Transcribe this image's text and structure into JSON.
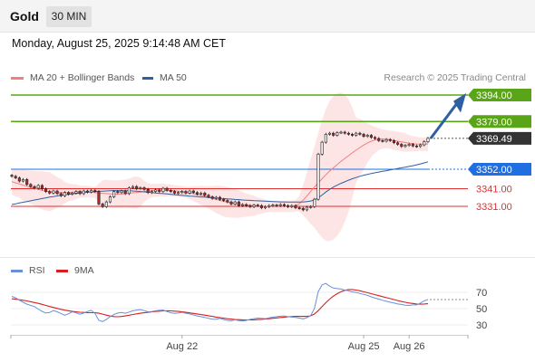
{
  "header": {
    "title": "Gold",
    "timeframe": "30 MIN"
  },
  "datetime": "Monday, August 25, 2025 9:14:48 AM CET",
  "copyright": "Research © 2025 Trading Central",
  "colors": {
    "ma20": "#f08080",
    "ma50": "#2e5fa3",
    "bollinger_fill": "#fde0e0",
    "resistance": "#5aa517",
    "current": "#333333",
    "pivot": "#1f6fe0",
    "support": "#e02f2f",
    "rsi": "#6a8fd8",
    "rsi_ma": "#d81f1f",
    "arrow": "#2e5fa3",
    "candle_up": "#f4f4f4",
    "candle_down": "#b12a2a"
  },
  "legend": {
    "ma20": "MA 20 + Bollinger Bands",
    "ma50": "MA 50",
    "rsi": "RSI",
    "rsi_ma": "9MA"
  },
  "chart_data": [
    {
      "type": "candlestick",
      "instrument": "Gold",
      "timeframe": "30 MIN",
      "ylim": [
        3316,
        3402
      ],
      "x_ticks": [
        "Aug 22",
        "Aug 25",
        "Aug 26"
      ],
      "levels": [
        {
          "label": "3394.00",
          "value": 3394.0,
          "kind": "resistance"
        },
        {
          "label": "3379.00",
          "value": 3379.0,
          "kind": "resistance"
        },
        {
          "label": "3369.49",
          "value": 3369.49,
          "kind": "current"
        },
        {
          "label": "3352.00",
          "value": 3352.0,
          "kind": "pivot"
        },
        {
          "label": "3341.00",
          "value": 3341.0,
          "kind": "support"
        },
        {
          "label": "3331.00",
          "value": 3331.0,
          "kind": "support"
        }
      ],
      "close": [
        3348.0,
        3347.1,
        3345.3,
        3346.2,
        3343.4,
        3342.2,
        3341.3,
        3342.8,
        3340.9,
        3339.4,
        3338.5,
        3339.7,
        3338.2,
        3337.0,
        3338.8,
        3337.9,
        3338.5,
        3339.4,
        3338.2,
        3339.7,
        3339.1,
        3340.0,
        3339.4,
        3332.3,
        3330.8,
        3333.5,
        3336.4,
        3339.4,
        3338.8,
        3339.7,
        3338.2,
        3341.5,
        3342.2,
        3341.0,
        3341.5,
        3340.6,
        3338.8,
        3339.4,
        3340.3,
        3339.4,
        3341.2,
        3340.0,
        3339.4,
        3338.5,
        3338.8,
        3339.4,
        3338.5,
        3339.7,
        3338.8,
        3337.9,
        3338.5,
        3337.3,
        3336.4,
        3335.5,
        3336.1,
        3334.9,
        3334.3,
        3333.5,
        3332.3,
        3333.5,
        3331.4,
        3332.0,
        3331.4,
        3330.8,
        3331.7,
        3331.4,
        3330.2,
        3330.8,
        3331.4,
        3331.7,
        3331.4,
        3332.0,
        3331.4,
        3330.8,
        3331.4,
        3330.2,
        3329.9,
        3329.0,
        3330.5,
        3330.8,
        3335.0,
        3360.5,
        3367.3,
        3371.8,
        3372.4,
        3371.2,
        3372.7,
        3373.0,
        3372.4,
        3371.8,
        3371.2,
        3372.4,
        3371.8,
        3370.6,
        3371.2,
        3370.0,
        3369.4,
        3368.2,
        3367.9,
        3368.8,
        3368.2,
        3367.0,
        3366.1,
        3364.9,
        3365.5,
        3366.1,
        3365.2,
        3364.9,
        3365.8,
        3367.6,
        3369.5
      ],
      "series": [
        {
          "name": "MA 20 + Bollinger Bands",
          "values": [
            3345.0,
            3344.3,
            3343.7,
            3343.0,
            3342.4,
            3341.8,
            3341.2,
            3340.6,
            3340.0,
            3339.6,
            3339.3,
            3339.0,
            3338.9,
            3338.8,
            3338.8,
            3338.9,
            3339.0,
            3339.2,
            3339.3,
            3339.4,
            3339.3,
            3339.1,
            3338.8,
            3338.6,
            3338.4,
            3338.2,
            3338.0,
            3337.9,
            3337.9,
            3338.0,
            3338.2,
            3338.4,
            3338.7,
            3338.9,
            3339.1,
            3339.4,
            3339.7,
            3339.9,
            3340.1,
            3340.2,
            3340.2,
            3340.1,
            3340.0,
            3339.8,
            3339.6,
            3339.3,
            3339.0,
            3338.6,
            3338.2,
            3337.7,
            3337.2,
            3336.7,
            3336.1,
            3335.5,
            3334.9,
            3334.4,
            3333.8,
            3333.4,
            3333.0,
            3332.6,
            3332.3,
            3332.0,
            3331.7,
            3331.5,
            3331.3,
            3331.2,
            3331.1,
            3331.0,
            3331.0,
            3330.9,
            3330.9,
            3330.9,
            3330.9,
            3330.9,
            3331.0,
            3331.4,
            3332.5,
            3334.5,
            3336.9,
            3339.4,
            3341.9,
            3344.3,
            3346.6,
            3348.8,
            3350.9,
            3352.8,
            3354.6,
            3356.4,
            3358.1,
            3359.7,
            3361.3,
            3362.8,
            3364.3,
            3365.7,
            3366.9,
            3367.9,
            3368.6,
            3369.0,
            3369.1,
            3369.0,
            3368.7,
            3368.3,
            3367.9,
            3367.5,
            3367.1,
            3366.8,
            3366.5,
            3366.3,
            3366.2,
            3366.2,
            3366.3
          ]
        },
        {
          "name": "MA 50",
          "values": [
            3332.0,
            3332.4,
            3332.9,
            3333.3,
            3333.7,
            3334.1,
            3334.6,
            3335.0,
            3335.4,
            3335.8,
            3336.2,
            3336.5,
            3336.9,
            3337.2,
            3337.5,
            3337.8,
            3338.1,
            3338.3,
            3338.6,
            3338.8,
            3339.0,
            3339.2,
            3339.4,
            3339.5,
            3339.6,
            3339.7,
            3339.8,
            3339.9,
            3339.9,
            3339.9,
            3339.8,
            3339.8,
            3339.7,
            3339.6,
            3339.4,
            3339.2,
            3339.0,
            3338.8,
            3338.6,
            3338.4,
            3338.2,
            3338.0,
            3337.8,
            3337.6,
            3337.4,
            3337.2,
            3337.0,
            3336.8,
            3336.7,
            3336.5,
            3336.3,
            3336.2,
            3336.0,
            3335.9,
            3335.7,
            3335.5,
            3335.4,
            3335.2,
            3335.1,
            3334.9,
            3334.8,
            3334.6,
            3334.5,
            3334.4,
            3334.2,
            3334.1,
            3334.0,
            3333.9,
            3333.8,
            3333.7,
            3333.6,
            3333.5,
            3333.5,
            3333.4,
            3333.4,
            3333.4,
            3333.4,
            3333.5,
            3333.7,
            3334.0,
            3334.6,
            3335.8,
            3337.4,
            3339.1,
            3340.6,
            3341.9,
            3343.0,
            3344.0,
            3344.9,
            3345.8,
            3346.6,
            3347.3,
            3348.0,
            3348.6,
            3349.1,
            3349.6,
            3350.0,
            3350.4,
            3350.8,
            3351.2,
            3351.6,
            3352.0,
            3352.4,
            3352.8,
            3353.2,
            3353.6,
            3354.0,
            3354.5,
            3355.0,
            3355.6,
            3356.2
          ]
        }
      ]
    },
    {
      "type": "line",
      "name": "RSI",
      "ylim": [
        20,
        80
      ],
      "y_ticks": [
        "70",
        "50",
        "30"
      ],
      "x_ticks": [
        "Aug 22",
        "Aug 25",
        "Aug 26"
      ],
      "series": [
        {
          "name": "RSI",
          "values": [
            65.0,
            63.2,
            60.5,
            57.8,
            55.4,
            53.9,
            52.4,
            49.4,
            46.7,
            44.6,
            45.2,
            47.6,
            46.1,
            44.0,
            41.9,
            43.7,
            46.1,
            44.9,
            43.1,
            44.6,
            46.4,
            47.9,
            44.0,
            35.6,
            34.1,
            36.8,
            40.1,
            42.8,
            44.6,
            45.2,
            44.3,
            45.8,
            47.3,
            48.2,
            48.8,
            47.6,
            46.1,
            46.4,
            47.3,
            47.9,
            48.2,
            46.4,
            44.9,
            44.3,
            44.6,
            45.5,
            44.3,
            43.4,
            42.2,
            41.0,
            40.1,
            39.2,
            38.0,
            37.1,
            36.8,
            38.0,
            36.5,
            35.6,
            35.0,
            36.2,
            35.3,
            34.7,
            35.6,
            36.8,
            37.7,
            38.3,
            38.0,
            37.7,
            38.6,
            39.5,
            40.1,
            40.7,
            41.0,
            40.1,
            39.5,
            39.2,
            38.3,
            37.4,
            38.9,
            41.3,
            50.3,
            71.0,
            79.1,
            80.9,
            77.6,
            75.2,
            74.6,
            74.0,
            72.8,
            71.9,
            70.4,
            69.8,
            68.6,
            67.4,
            66.2,
            64.4,
            62.9,
            61.7,
            60.2,
            59.0,
            57.8,
            56.9,
            55.7,
            55.1,
            54.2,
            53.9,
            54.5,
            54.5,
            56.9,
            59.6,
            61.1
          ]
        },
        {
          "name": "9MA",
          "values": [
            62.0,
            61.5,
            60.9,
            60.2,
            59.4,
            58.5,
            57.5,
            56.4,
            55.2,
            53.9,
            52.6,
            51.4,
            50.2,
            49.1,
            48.1,
            47.3,
            46.6,
            46.0,
            45.6,
            45.3,
            45.1,
            45.0,
            44.9,
            44.3,
            43.2,
            42.0,
            40.9,
            40.2,
            40.0,
            40.3,
            41.0,
            41.9,
            42.8,
            43.6,
            44.3,
            44.9,
            45.5,
            46.0,
            46.5,
            46.9,
            47.2,
            47.3,
            47.2,
            46.9,
            46.5,
            46.0,
            45.4,
            44.8,
            44.1,
            43.4,
            42.7,
            42.0,
            41.2,
            40.4,
            39.6,
            38.9,
            38.2,
            37.6,
            37.1,
            36.7,
            36.4,
            36.2,
            36.1,
            36.1,
            36.2,
            36.5,
            36.8,
            37.2,
            37.6,
            38.1,
            38.6,
            39.1,
            39.5,
            39.9,
            40.2,
            40.4,
            40.5,
            40.5,
            40.5,
            41.1,
            43.4,
            47.6,
            52.4,
            57.2,
            61.7,
            65.3,
            68.3,
            70.7,
            72.4,
            73.4,
            73.4,
            72.8,
            71.9,
            70.7,
            69.5,
            68.3,
            67.1,
            65.9,
            64.7,
            63.5,
            62.3,
            61.1,
            59.9,
            58.7,
            57.8,
            56.9,
            56.3,
            55.7,
            55.4,
            55.7,
            56.0
          ]
        }
      ]
    }
  ]
}
